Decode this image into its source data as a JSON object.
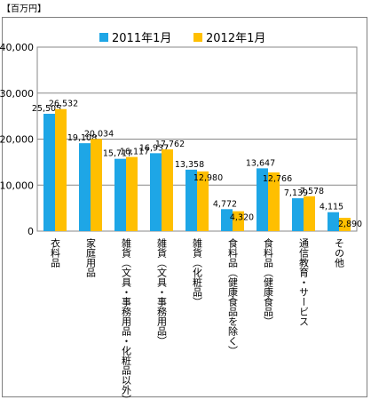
{
  "unit_label": "【百万円】",
  "chart_data": {
    "type": "bar",
    "title": "",
    "ylim": [
      0,
      40000
    ],
    "yticks": [
      0,
      10000,
      20000,
      30000,
      40000
    ],
    "ytick_labels": [
      "0",
      "10,000",
      "20,000",
      "30,000",
      "40,000"
    ],
    "grid": true,
    "legend_position": "top",
    "categories": [
      "衣料品",
      "家庭用品",
      "雑貨（文具・事務用品・化粧品以外）",
      "雑貨（文具・事務用品）",
      "雑貨（化粧品）",
      "食料品（健康食品を除く）",
      "食料品（健康食品）",
      "通信教育・サービス",
      "その他"
    ],
    "series": [
      {
        "name": "2011年1月",
        "color": "#1ea6e6",
        "values": [
          25505,
          19108,
          15717,
          16937,
          13358,
          4772,
          13647,
          7139,
          4115
        ],
        "labels": [
          "25,505",
          "19,108",
          "15,717",
          "16,937",
          "13,358",
          "4,772",
          "13,647",
          "7,139",
          "4,115"
        ]
      },
      {
        "name": "2012年1月",
        "color": "#ffbf00",
        "values": [
          26532,
          20034,
          16117,
          17762,
          12980,
          4320,
          12766,
          7578,
          2890
        ],
        "labels": [
          "26,532",
          "20,034",
          "16,117",
          "17,762",
          "12,980",
          "4,320",
          "12,766",
          "7,578",
          "2,890"
        ]
      }
    ]
  }
}
